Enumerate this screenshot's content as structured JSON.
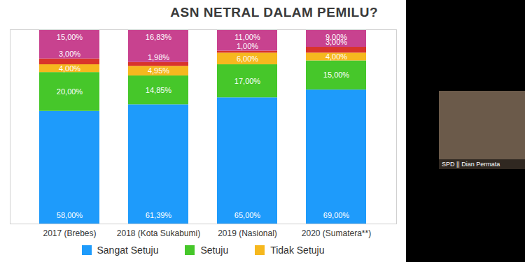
{
  "chart_data": {
    "type": "bar",
    "title": "ASN NETRAL DALAM PEMILU?",
    "categories": [
      "2017 (Brebes)",
      "2018 (Kota Sukabumi)",
      "2019 (Nasional)",
      "2020 (Sumatera**)"
    ],
    "series": [
      {
        "name": "Sangat Setuju",
        "color": "#1e9bfb",
        "values": [
          58,
          61.39,
          65,
          69
        ],
        "value_labels": [
          "58,00%",
          "61,39%",
          "65,00%",
          "69,00%"
        ]
      },
      {
        "name": "Setuju",
        "color": "#46c72a",
        "values": [
          20,
          14.85,
          17,
          15
        ],
        "value_labels": [
          "20,00%",
          "14,85%",
          "17,00%",
          "15,00%"
        ]
      },
      {
        "name": "Tidak Setuju",
        "color": "#f6b81e",
        "values": [
          4,
          4.95,
          6,
          4
        ],
        "value_labels": [
          "4,00%",
          "4,95%",
          "6,00%",
          "4,00%"
        ]
      },
      {
        "color": "#d9342b",
        "values": [
          3,
          1.98,
          1,
          3
        ],
        "value_labels": [
          "3,00%",
          "1,98%",
          "1,00%",
          "3,00%"
        ]
      },
      {
        "color": "#c8428f",
        "values": [
          15,
          16.83,
          11,
          9
        ],
        "value_labels": [
          "15,00%",
          "16,83%",
          "11,00%",
          "9,00%"
        ]
      }
    ],
    "ylim": [
      0,
      100
    ],
    "stacked": true,
    "data_labels": true,
    "tick_labels": "x",
    "legend": "bottom",
    "annotations": [
      "SPD || Dian Permata"
    ]
  }
}
